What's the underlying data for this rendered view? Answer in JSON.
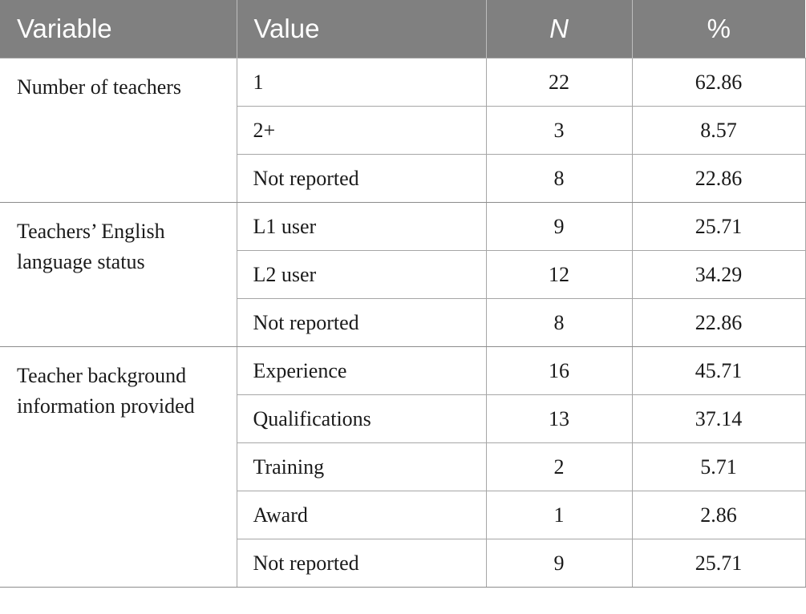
{
  "table": {
    "headers": {
      "variable": "Variable",
      "value": "Value",
      "n": "N",
      "pct": "%"
    },
    "groups": [
      {
        "variable": "Number of teachers",
        "rows": [
          {
            "value": "1",
            "n": "22",
            "pct": "62.86"
          },
          {
            "value": "2+",
            "n": "3",
            "pct": "8.57"
          },
          {
            "value": "Not reported",
            "n": "8",
            "pct": "22.86"
          }
        ]
      },
      {
        "variable": "Teachers’ English language status",
        "rows": [
          {
            "value": "L1 user",
            "n": "9",
            "pct": "25.71"
          },
          {
            "value": "L2 user",
            "n": "12",
            "pct": "34.29"
          },
          {
            "value": "Not reported",
            "n": "8",
            "pct": "22.86"
          }
        ]
      },
      {
        "variable": "Teacher background information provided",
        "rows": [
          {
            "value": "Experience",
            "n": "16",
            "pct": "45.71"
          },
          {
            "value": "Qualifications",
            "n": "13",
            "pct": "37.14"
          },
          {
            "value": "Training",
            "n": "2",
            "pct": "5.71"
          },
          {
            "value": "Award",
            "n": "1",
            "pct": "2.86"
          },
          {
            "value": "Not reported",
            "n": "9",
            "pct": "25.71"
          }
        ]
      }
    ]
  },
  "colors": {
    "header_bg": "#808080",
    "header_text": "#ffffff",
    "grid": "#a6a6a6"
  }
}
